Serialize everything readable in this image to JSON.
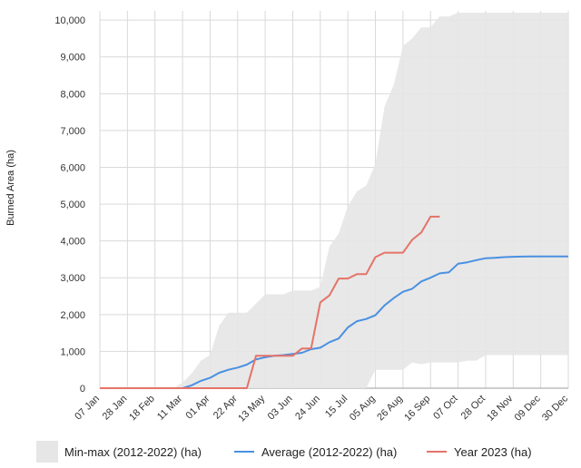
{
  "chart_data": {
    "type": "line",
    "title": "",
    "xlabel": "",
    "ylabel": "Burned Area (ha)",
    "ylim": [
      0,
      10250
    ],
    "y_ticks": [
      0,
      1000,
      2000,
      3000,
      4000,
      5000,
      6000,
      7000,
      8000,
      9000,
      10000
    ],
    "y_tick_labels": [
      "0",
      "1,000",
      "2,000",
      "3,000",
      "4,000",
      "5,000",
      "6,000",
      "7,000",
      "8,000",
      "9,000",
      "10,000"
    ],
    "x_ticks": [
      "07 Jan",
      "28 Jan",
      "18 Feb",
      "11 Mar",
      "01 Apr",
      "22 Apr",
      "13 May",
      "03 Jun",
      "24 Jun",
      "15 Jul",
      "05 Aug",
      "26 Aug",
      "16 Sep",
      "07 Oct",
      "28 Oct",
      "18 Nov",
      "09 Dec",
      "30 Dec"
    ],
    "x_unit": "week index from 07 Jan (tick every 3 weeks)",
    "grid": true,
    "legend_position": "bottom",
    "series": [
      {
        "name": "Min-max (2012-2022) (ha)",
        "kind": "band",
        "color": "#e6e6e6",
        "x": [
          0,
          1,
          2,
          3,
          4,
          5,
          6,
          7,
          8,
          9,
          10,
          11,
          12,
          13,
          14,
          15,
          16,
          17,
          18,
          19,
          20,
          21,
          22,
          23,
          24,
          25,
          26,
          27,
          28,
          29,
          30,
          31,
          32,
          33,
          34,
          35,
          36,
          37,
          38,
          39,
          40,
          41,
          42,
          43,
          44,
          45,
          46,
          47,
          48,
          49,
          50,
          51
        ],
        "low": [
          0,
          0,
          0,
          0,
          0,
          0,
          0,
          0,
          0,
          0,
          0,
          0,
          0,
          0,
          0,
          0,
          0,
          0,
          0,
          0,
          0,
          0,
          0,
          0,
          0,
          0,
          0,
          0,
          0,
          0,
          500,
          500,
          500,
          500,
          700,
          650,
          700,
          700,
          700,
          700,
          750,
          750,
          900,
          900,
          900,
          900,
          900,
          900,
          900,
          900,
          900,
          900
        ],
        "high": [
          0,
          0,
          0,
          0,
          0,
          0,
          0,
          0,
          0,
          150,
          400,
          750,
          900,
          1700,
          2050,
          2050,
          2050,
          2300,
          2550,
          2550,
          2550,
          2650,
          2650,
          2650,
          2750,
          3850,
          4200,
          4950,
          5350,
          5500,
          6100,
          7650,
          8250,
          9300,
          9500,
          9800,
          9800,
          10100,
          10100,
          10200,
          10200,
          10200,
          10200,
          10200,
          10200,
          10200,
          10200,
          10200,
          10200,
          10200,
          10200,
          10200
        ]
      },
      {
        "name": "Average (2012-2022) (ha)",
        "kind": "line",
        "color": "#4a90e2",
        "x": [
          0,
          1,
          2,
          3,
          4,
          5,
          6,
          7,
          8,
          9,
          10,
          11,
          12,
          13,
          14,
          15,
          16,
          17,
          18,
          19,
          20,
          21,
          22,
          23,
          24,
          25,
          26,
          27,
          28,
          29,
          30,
          31,
          32,
          33,
          34,
          35,
          36,
          37,
          38,
          39,
          40,
          41,
          42,
          43,
          44,
          45,
          46,
          47,
          48,
          49,
          50,
          51
        ],
        "values": [
          0,
          0,
          0,
          0,
          0,
          0,
          0,
          0,
          0,
          0,
          80,
          200,
          280,
          420,
          500,
          560,
          640,
          780,
          840,
          880,
          900,
          930,
          960,
          1060,
          1100,
          1250,
          1350,
          1650,
          1820,
          1880,
          1980,
          2250,
          2450,
          2620,
          2700,
          2900,
          3000,
          3120,
          3150,
          3380,
          3420,
          3480,
          3530,
          3540,
          3560,
          3570,
          3575,
          3580,
          3580,
          3580,
          3580,
          3580
        ]
      },
      {
        "name": "Year 2023 (ha)",
        "kind": "line",
        "color": "#e57368",
        "x": [
          0,
          1,
          2,
          3,
          4,
          5,
          6,
          7,
          8,
          9,
          10,
          11,
          12,
          13,
          14,
          15,
          16,
          17,
          18,
          19,
          20,
          21,
          22,
          23,
          24,
          25,
          26,
          27,
          28,
          29,
          30,
          31,
          32,
          33,
          34,
          35,
          36,
          37
        ],
        "values": [
          0,
          0,
          0,
          0,
          0,
          0,
          0,
          0,
          0,
          0,
          0,
          0,
          0,
          0,
          0,
          0,
          0,
          880,
          880,
          880,
          880,
          880,
          1080,
          1080,
          2330,
          2520,
          2980,
          2980,
          3100,
          3100,
          3560,
          3680,
          3680,
          3680,
          4030,
          4230,
          4660,
          4660
        ]
      }
    ]
  }
}
